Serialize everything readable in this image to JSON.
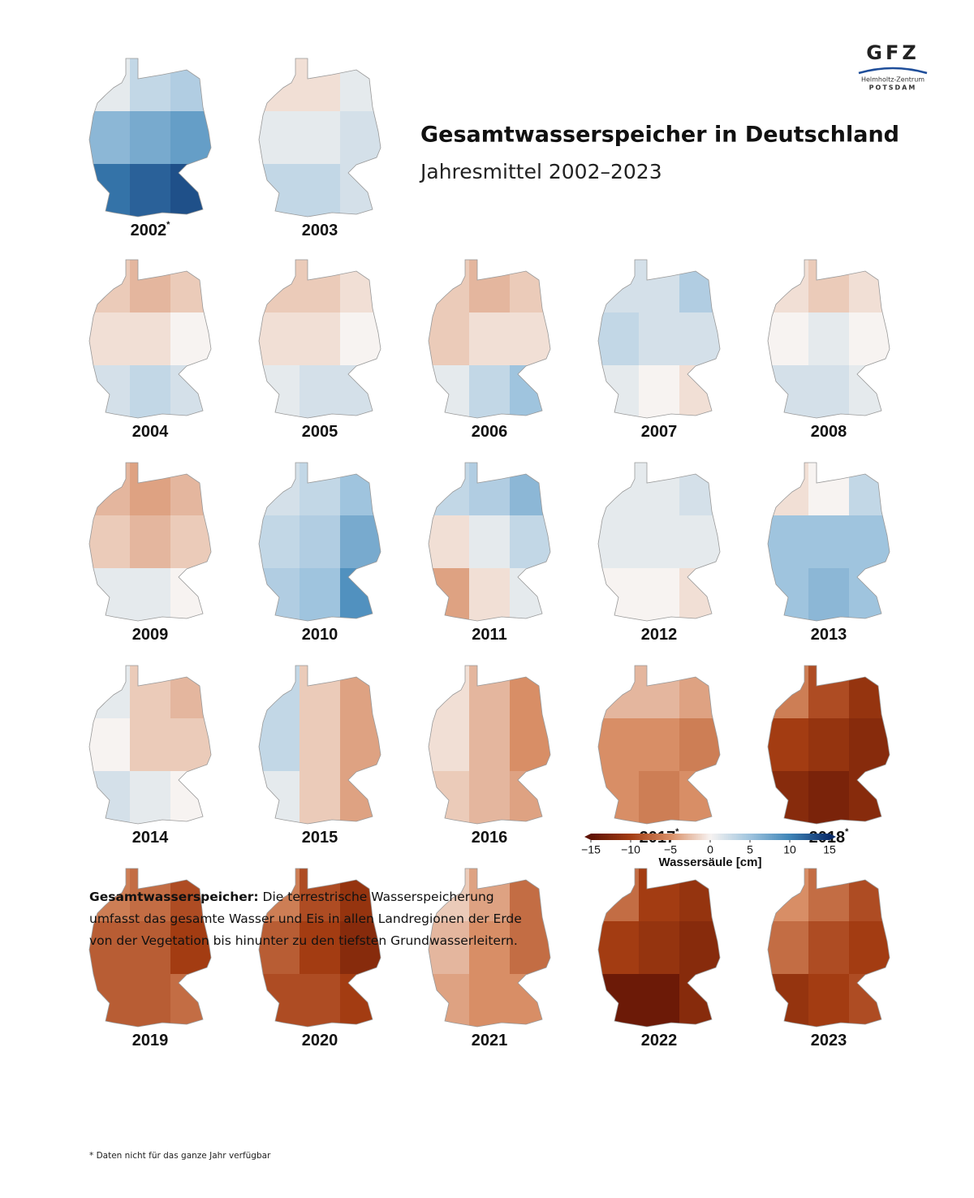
{
  "logo": {
    "name": "GFZ",
    "line1": "Helmholtz-Zentrum",
    "line2": "POTSDAM"
  },
  "title": "Gesamtwasserspeicher in Deutschland",
  "subtitle": "Jahresmittel 2002–2023",
  "maps": [
    {
      "year": "2002",
      "note": "*",
      "grid": [
        [
          1,
          3,
          4
        ],
        [
          6,
          7,
          8
        ],
        [
          11,
          12,
          13
        ]
      ]
    },
    {
      "year": "2003",
      "grid": [
        [
          -1,
          -1,
          1
        ],
        [
          1,
          1,
          2
        ],
        [
          3,
          3,
          2
        ]
      ]
    },
    {
      "year": "2004",
      "grid": [
        [
          -2,
          -3,
          -2
        ],
        [
          -1,
          -1,
          0
        ],
        [
          2,
          3,
          2
        ]
      ]
    },
    {
      "year": "2005",
      "grid": [
        [
          -2,
          -2,
          -1
        ],
        [
          -1,
          -1,
          0
        ],
        [
          1,
          2,
          2
        ]
      ]
    },
    {
      "year": "2006",
      "grid": [
        [
          -2,
          -3,
          -2
        ],
        [
          -2,
          -1,
          -1
        ],
        [
          1,
          3,
          5
        ]
      ]
    },
    {
      "year": "2007",
      "grid": [
        [
          2,
          2,
          4
        ],
        [
          3,
          2,
          2
        ],
        [
          1,
          0,
          -1
        ]
      ]
    },
    {
      "year": "2008",
      "grid": [
        [
          -1,
          -2,
          -1
        ],
        [
          0,
          1,
          0
        ],
        [
          2,
          2,
          1
        ]
      ]
    },
    {
      "year": "2009",
      "grid": [
        [
          -3,
          -4,
          -3
        ],
        [
          -2,
          -3,
          -2
        ],
        [
          1,
          1,
          0
        ]
      ]
    },
    {
      "year": "2010",
      "grid": [
        [
          2,
          3,
          5
        ],
        [
          3,
          4,
          7
        ],
        [
          4,
          5,
          9
        ]
      ]
    },
    {
      "year": "2011",
      "grid": [
        [
          3,
          4,
          6
        ],
        [
          -1,
          1,
          3
        ],
        [
          -4,
          -1,
          1
        ]
      ]
    },
    {
      "year": "2012",
      "grid": [
        [
          1,
          1,
          2
        ],
        [
          1,
          1,
          1
        ],
        [
          0,
          0,
          -1
        ]
      ]
    },
    {
      "year": "2013",
      "grid": [
        [
          -1,
          0,
          3
        ],
        [
          5,
          5,
          5
        ],
        [
          5,
          6,
          5
        ]
      ]
    },
    {
      "year": "2014",
      "grid": [
        [
          1,
          -2,
          -3
        ],
        [
          0,
          -2,
          -2
        ],
        [
          2,
          1,
          0
        ]
      ]
    },
    {
      "year": "2015",
      "grid": [
        [
          3,
          -2,
          -4
        ],
        [
          3,
          -2,
          -4
        ],
        [
          1,
          -2,
          -4
        ]
      ]
    },
    {
      "year": "2016",
      "grid": [
        [
          -1,
          -3,
          -5
        ],
        [
          -1,
          -3,
          -5
        ],
        [
          -2,
          -3,
          -4
        ]
      ]
    },
    {
      "year": "2017",
      "note": "*",
      "grid": [
        [
          -3,
          -3,
          -4
        ],
        [
          -5,
          -5,
          -6
        ],
        [
          -5,
          -6,
          -5
        ]
      ]
    },
    {
      "year": "2018",
      "note": "*",
      "grid": [
        [
          -6,
          -9,
          -11
        ],
        [
          -10,
          -11,
          -12
        ],
        [
          -12,
          -13,
          -12
        ]
      ]
    },
    {
      "year": "2019",
      "grid": [
        [
          -6,
          -7,
          -9
        ],
        [
          -8,
          -8,
          -10
        ],
        [
          -8,
          -8,
          -7
        ]
      ]
    },
    {
      "year": "2020",
      "grid": [
        [
          -6,
          -9,
          -11
        ],
        [
          -8,
          -10,
          -12
        ],
        [
          -9,
          -9,
          -10
        ]
      ]
    },
    {
      "year": "2021",
      "grid": [
        [
          -2,
          -4,
          -7
        ],
        [
          -3,
          -5,
          -7
        ],
        [
          -4,
          -5,
          -5
        ]
      ]
    },
    {
      "year": "2022",
      "grid": [
        [
          -7,
          -10,
          -11
        ],
        [
          -10,
          -11,
          -12
        ],
        [
          -14,
          -14,
          -12
        ]
      ]
    },
    {
      "year": "2023",
      "grid": [
        [
          -5,
          -7,
          -9
        ],
        [
          -7,
          -9,
          -10
        ],
        [
          -11,
          -10,
          -9
        ]
      ]
    }
  ],
  "colorbar": {
    "label": "Wassersäule [cm]",
    "lim": [
      -15,
      15
    ],
    "ticks": [
      {
        "value": -15,
        "label": "−15"
      },
      {
        "value": -10,
        "label": "−10"
      },
      {
        "value": -5,
        "label": "−5"
      },
      0,
      5,
      10,
      15
    ],
    "colors": [
      "#5e1204",
      "#a33c12",
      "#d88e66",
      "#f7f3f1",
      "#9fc4de",
      "#3e84b7",
      "#0b2d6b"
    ]
  },
  "definition": {
    "term": "Gesamtwasserspeicher:",
    "text": "Die terrestrische Wasserspeicherung umfasst das gesamte Wasser und Eis in allen Landregionen der Erde von der Vegetation bis hinunter zu den tiefsten Grundwasserleitern."
  },
  "footnote": "* Daten nicht für das ganze Jahr verfügbar"
}
